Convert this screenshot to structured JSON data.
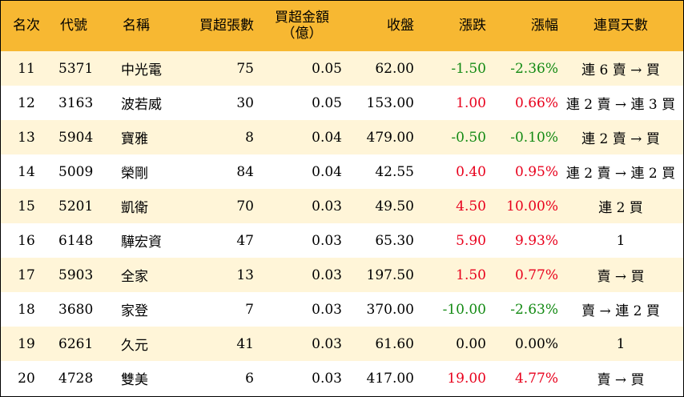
{
  "headers": {
    "rank": "名次",
    "code": "代號",
    "name": "名稱",
    "lots": "買超張數",
    "amount_line1": "買超金額",
    "amount_line2": "（億）",
    "close": "收盤",
    "change": "漲跌",
    "pct": "漲幅",
    "days": "連買天數"
  },
  "colors": {
    "header_bg": "#f7b832",
    "stripe_bg": "#fff5d8",
    "up": "#e8001c",
    "down": "#138a13"
  },
  "rows": [
    {
      "rank": "11",
      "code": "5371",
      "name": "中光電",
      "lots": "75",
      "amount": "0.05",
      "close": "62.00",
      "change": "-1.50",
      "pct": "-2.36%",
      "days": "連 6 賣 → 買",
      "dir": "down"
    },
    {
      "rank": "12",
      "code": "3163",
      "name": "波若威",
      "lots": "30",
      "amount": "0.05",
      "close": "153.00",
      "change": "1.00",
      "pct": "0.66%",
      "days": "連 2 賣 → 連 3 買",
      "dir": "up"
    },
    {
      "rank": "13",
      "code": "5904",
      "name": "寶雅",
      "lots": "8",
      "amount": "0.04",
      "close": "479.00",
      "change": "-0.50",
      "pct": "-0.10%",
      "days": "連 2 賣 → 買",
      "dir": "down"
    },
    {
      "rank": "14",
      "code": "5009",
      "name": "榮剛",
      "lots": "84",
      "amount": "0.04",
      "close": "42.55",
      "change": "0.40",
      "pct": "0.95%",
      "days": "連 2 賣 → 連 2 買",
      "dir": "up"
    },
    {
      "rank": "15",
      "code": "5201",
      "name": "凱衛",
      "lots": "70",
      "amount": "0.03",
      "close": "49.50",
      "change": "4.50",
      "pct": "10.00%",
      "days": "連 2 買",
      "dir": "up"
    },
    {
      "rank": "16",
      "code": "6148",
      "name": "驊宏資",
      "lots": "47",
      "amount": "0.03",
      "close": "65.30",
      "change": "5.90",
      "pct": "9.93%",
      "days": "1",
      "dir": "up"
    },
    {
      "rank": "17",
      "code": "5903",
      "name": "全家",
      "lots": "13",
      "amount": "0.03",
      "close": "197.50",
      "change": "1.50",
      "pct": "0.77%",
      "days": "賣 → 買",
      "dir": "up"
    },
    {
      "rank": "18",
      "code": "3680",
      "name": "家登",
      "lots": "7",
      "amount": "0.03",
      "close": "370.00",
      "change": "-10.00",
      "pct": "-2.63%",
      "days": "賣 → 連 2 買",
      "dir": "down"
    },
    {
      "rank": "19",
      "code": "6261",
      "name": "久元",
      "lots": "41",
      "amount": "0.03",
      "close": "61.60",
      "change": "0.00",
      "pct": "0.00%",
      "days": "1",
      "dir": "flat"
    },
    {
      "rank": "20",
      "code": "4728",
      "name": "雙美",
      "lots": "6",
      "amount": "0.03",
      "close": "417.00",
      "change": "19.00",
      "pct": "4.77%",
      "days": "賣 → 買",
      "dir": "up"
    }
  ]
}
